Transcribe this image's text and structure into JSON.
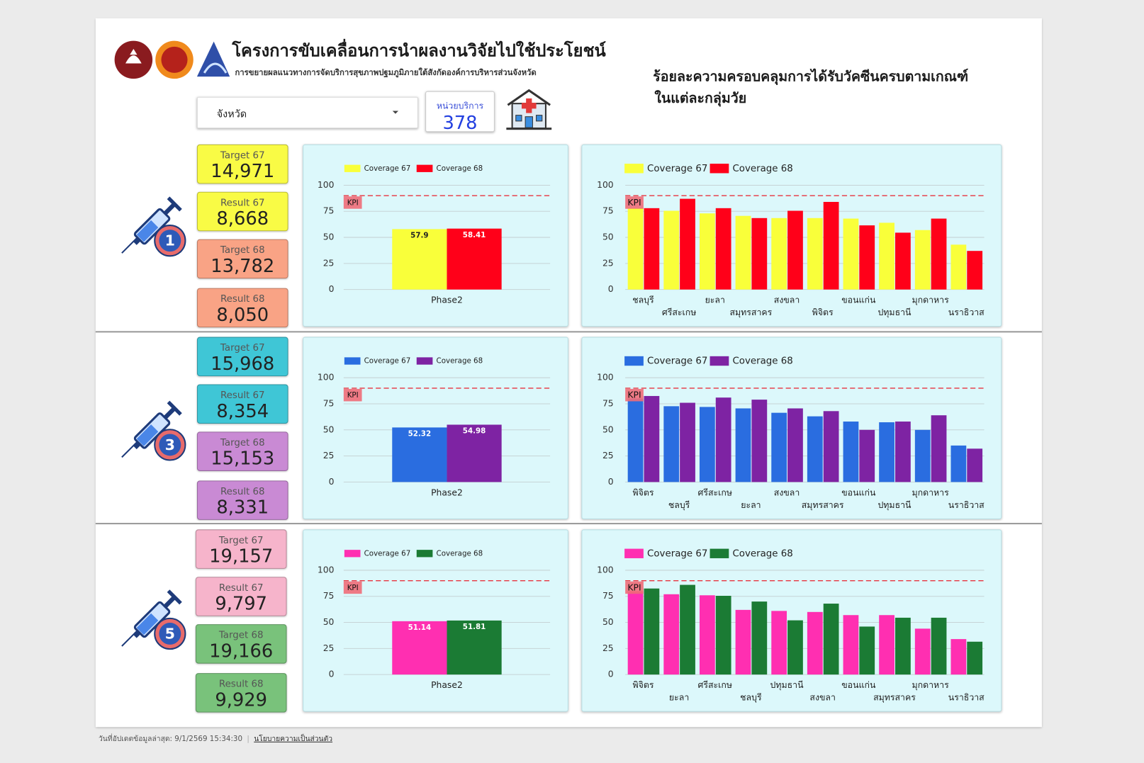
{
  "header": {
    "title": "โครงการขับเคลื่อนการนำผลงานวิจัยไปใช้ประโยชน์",
    "subtitle": "การขยายผลแนวทางการจัดบริการสุขภาพปฐมภูมิภายใต้สังกัดองค์การบริหารส่วนจังหวัด",
    "report_title": [
      "ร้อยละความครอบคลุมการได้รับวัคซีนครบตามเกณฑ์",
      "ในแต่ละกลุ่มวัย"
    ]
  },
  "filter": {
    "label": "จังหวัด"
  },
  "service_units": {
    "label": "หน่วยบริการ",
    "value": "378"
  },
  "sections": [
    {
      "dose": "1",
      "cards": [
        {
          "label": "Target 67",
          "value": "14,971",
          "color": "#f9fb45"
        },
        {
          "label": "Result 67",
          "value": "8,668",
          "color": "#f9fb45"
        },
        {
          "label": "Target 68",
          "value": "13,782",
          "color": "#f9a385"
        },
        {
          "label": "Result 68",
          "value": "8,050",
          "color": "#f9a385"
        }
      ]
    },
    {
      "dose": "3",
      "cards": [
        {
          "label": "Target 67",
          "value": "15,968",
          "color": "#3fc6d6"
        },
        {
          "label": "Result 67",
          "value": "8,354",
          "color": "#3fc6d6"
        },
        {
          "label": "Target 68",
          "value": "15,153",
          "color": "#c98ad4"
        },
        {
          "label": "Result 68",
          "value": "8,331",
          "color": "#c98ad4"
        }
      ]
    },
    {
      "dose": "5",
      "cards": [
        {
          "label": "Target 67",
          "value": "19,157",
          "color": "#f6b4cb"
        },
        {
          "label": "Result 67",
          "value": "9,797",
          "color": "#f6b4cb"
        },
        {
          "label": "Target 68",
          "value": "19,166",
          "color": "#79c27b"
        },
        {
          "label": "Result 68",
          "value": "9,929",
          "color": "#79c27b"
        }
      ]
    }
  ],
  "chart_data": [
    {
      "type": "bar",
      "categories": [
        "Phase2"
      ],
      "series": [
        {
          "name": "Coverage 67",
          "color": "#f9ff3a",
          "values": [
            57.9
          ]
        },
        {
          "name": "Coverage 68",
          "color": "#ff0019",
          "values": [
            58.41
          ]
        }
      ],
      "ylim": [
        0,
        100
      ],
      "yticks": [
        0,
        25,
        50,
        75,
        100
      ],
      "grid": true,
      "legend": "top",
      "kpi": {
        "value": 90,
        "label": "KPI"
      }
    },
    {
      "type": "bar",
      "categories": [
        "ชลบุรี",
        "ศรีสะเกษ",
        "ยะลา",
        "สมุทรสาคร",
        "สงขลา",
        "พิจิตร",
        "ขอนแก่น",
        "ปทุมธานี",
        "มุกดาหาร",
        "นราธิวาส"
      ],
      "series": [
        {
          "name": "Coverage 67",
          "color": "#f9ff3a",
          "values": [
            78,
            75.5,
            73,
            70.6,
            68.5,
            68.5,
            68,
            64,
            57,
            43
          ]
        },
        {
          "name": "Coverage 68",
          "color": "#ff0019",
          "values": [
            78,
            87,
            78,
            68.5,
            75.5,
            84,
            61.5,
            54.5,
            68,
            37
          ]
        }
      ],
      "ylim": [
        0,
        100
      ],
      "yticks": [
        0,
        25,
        50,
        75,
        100
      ],
      "grid": true,
      "legend": "top",
      "kpi": {
        "value": 90,
        "label": "KPI"
      }
    },
    {
      "type": "bar",
      "categories": [
        "Phase2"
      ],
      "series": [
        {
          "name": "Coverage 67",
          "color": "#2a6de0",
          "values": [
            52.32
          ]
        },
        {
          "name": "Coverage 68",
          "color": "#7e23a3",
          "values": [
            54.98
          ]
        }
      ],
      "ylim": [
        0,
        100
      ],
      "yticks": [
        0,
        25,
        50,
        75,
        100
      ],
      "grid": true,
      "legend": "top",
      "kpi": {
        "value": 90,
        "label": "KPI"
      }
    },
    {
      "type": "bar",
      "categories": [
        "พิจิตร",
        "ชลบุรี",
        "ศรีสะเกษ",
        "ยะลา",
        "สงขลา",
        "สมุทรสาคร",
        "ขอนแก่น",
        "ปทุมธานี",
        "มุกดาหาร",
        "นราธิวาส"
      ],
      "series": [
        {
          "name": "Coverage 67",
          "color": "#2a6de0",
          "values": [
            80,
            72.7,
            72,
            70.6,
            66.4,
            63,
            58,
            57.3,
            50,
            35
          ]
        },
        {
          "name": "Coverage 68",
          "color": "#7e23a3",
          "values": [
            82.5,
            76,
            81,
            79,
            70.6,
            68,
            50,
            58,
            64,
            32
          ]
        }
      ],
      "ylim": [
        0,
        100
      ],
      "yticks": [
        0,
        25,
        50,
        75,
        100
      ],
      "grid": true,
      "legend": "top",
      "kpi": {
        "value": 90,
        "label": "KPI"
      }
    },
    {
      "type": "bar",
      "categories": [
        "Phase2"
      ],
      "series": [
        {
          "name": "Coverage 67",
          "color": "#ff2fb1",
          "values": [
            51.14
          ]
        },
        {
          "name": "Coverage 68",
          "color": "#1b7b34",
          "values": [
            51.81
          ]
        }
      ],
      "ylim": [
        0,
        100
      ],
      "yticks": [
        0,
        25,
        50,
        75,
        100
      ],
      "grid": true,
      "legend": "top",
      "kpi": {
        "value": 90,
        "label": "KPI"
      }
    },
    {
      "type": "bar",
      "categories": [
        "พิจิตร",
        "ยะลา",
        "ศรีสะเกษ",
        "ชลบุรี",
        "ปทุมธานี",
        "สงขลา",
        "ขอนแก่น",
        "สมุทรสาคร",
        "มุกดาหาร",
        "นราธิวาส"
      ],
      "series": [
        {
          "name": "Coverage 67",
          "color": "#ff2fb1",
          "values": [
            80,
            77,
            76,
            62,
            61,
            60,
            57,
            57,
            44,
            34
          ]
        },
        {
          "name": "Coverage 68",
          "color": "#1b7b34",
          "values": [
            82.5,
            86,
            75.5,
            70,
            52,
            68,
            46,
            54.5,
            54.5,
            31.5
          ]
        }
      ],
      "ylim": [
        0,
        100
      ],
      "yticks": [
        0,
        25,
        50,
        75,
        100
      ],
      "grid": true,
      "legend": "top",
      "kpi": {
        "value": 90,
        "label": "KPI"
      }
    }
  ],
  "footer": {
    "updated": "วันที่อัปเดตข้อมูลล่าสุด: 9/1/2569 15:34:30",
    "separator": "|",
    "privacy": "นโยบายความเป็นส่วนตัว"
  }
}
